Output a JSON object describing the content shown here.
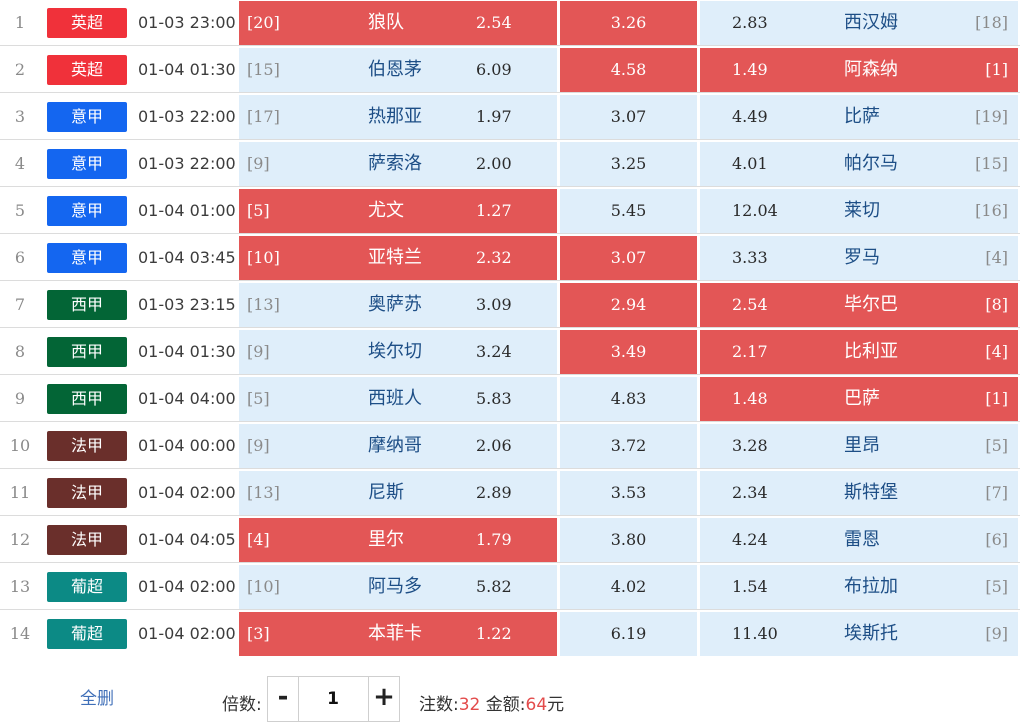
{
  "colors": {
    "league_epl": "#f0313a",
    "league_seriea": "#1466f0",
    "league_laliga": "#036536",
    "league_ligue1": "#6a2f2b",
    "league_primeira": "#0c8a85",
    "selected_cell": "#e35656",
    "unselected_cell": "#dfeefa"
  },
  "matches": [
    {
      "index": "1",
      "league": "英超",
      "league_color": "#f0313a",
      "time": "01-03 23:00",
      "home_rank": "[20]",
      "home_team": "狼队",
      "odds_home": "2.54",
      "odds_draw": "3.26",
      "odds_away": "2.83",
      "away_team": "西汉姆",
      "away_rank": "[18]",
      "sel_home": true,
      "sel_draw": true,
      "sel_away": false
    },
    {
      "index": "2",
      "league": "英超",
      "league_color": "#f0313a",
      "time": "01-04 01:30",
      "home_rank": "[15]",
      "home_team": "伯恩茅",
      "odds_home": "6.09",
      "odds_draw": "4.58",
      "odds_away": "1.49",
      "away_team": "阿森纳",
      "away_rank": "[1]",
      "sel_home": false,
      "sel_draw": true,
      "sel_away": true
    },
    {
      "index": "3",
      "league": "意甲",
      "league_color": "#1466f0",
      "time": "01-03 22:00",
      "home_rank": "[17]",
      "home_team": "热那亚",
      "odds_home": "1.97",
      "odds_draw": "3.07",
      "odds_away": "4.49",
      "away_team": "比萨",
      "away_rank": "[19]",
      "sel_home": false,
      "sel_draw": false,
      "sel_away": false
    },
    {
      "index": "4",
      "league": "意甲",
      "league_color": "#1466f0",
      "time": "01-03 22:00",
      "home_rank": "[9]",
      "home_team": "萨索洛",
      "odds_home": "2.00",
      "odds_draw": "3.25",
      "odds_away": "4.01",
      "away_team": "帕尔马",
      "away_rank": "[15]",
      "sel_home": false,
      "sel_draw": false,
      "sel_away": false
    },
    {
      "index": "5",
      "league": "意甲",
      "league_color": "#1466f0",
      "time": "01-04 01:00",
      "home_rank": "[5]",
      "home_team": "尤文",
      "odds_home": "1.27",
      "odds_draw": "5.45",
      "odds_away": "12.04",
      "away_team": "莱切",
      "away_rank": "[16]",
      "sel_home": true,
      "sel_draw": false,
      "sel_away": false
    },
    {
      "index": "6",
      "league": "意甲",
      "league_color": "#1466f0",
      "time": "01-04 03:45",
      "home_rank": "[10]",
      "home_team": "亚特兰",
      "odds_home": "2.32",
      "odds_draw": "3.07",
      "odds_away": "3.33",
      "away_team": "罗马",
      "away_rank": "[4]",
      "sel_home": true,
      "sel_draw": true,
      "sel_away": false
    },
    {
      "index": "7",
      "league": "西甲",
      "league_color": "#036536",
      "time": "01-03 23:15",
      "home_rank": "[13]",
      "home_team": "奥萨苏",
      "odds_home": "3.09",
      "odds_draw": "2.94",
      "odds_away": "2.54",
      "away_team": "毕尔巴",
      "away_rank": "[8]",
      "sel_home": false,
      "sel_draw": true,
      "sel_away": true
    },
    {
      "index": "8",
      "league": "西甲",
      "league_color": "#036536",
      "time": "01-04 01:30",
      "home_rank": "[9]",
      "home_team": "埃尔切",
      "odds_home": "3.24",
      "odds_draw": "3.49",
      "odds_away": "2.17",
      "away_team": "比利亚",
      "away_rank": "[4]",
      "sel_home": false,
      "sel_draw": true,
      "sel_away": true
    },
    {
      "index": "9",
      "league": "西甲",
      "league_color": "#036536",
      "time": "01-04 04:00",
      "home_rank": "[5]",
      "home_team": "西班人",
      "odds_home": "5.83",
      "odds_draw": "4.83",
      "odds_away": "1.48",
      "away_team": "巴萨",
      "away_rank": "[1]",
      "sel_home": false,
      "sel_draw": false,
      "sel_away": true
    },
    {
      "index": "10",
      "league": "法甲",
      "league_color": "#6a2f2b",
      "time": "01-04 00:00",
      "home_rank": "[9]",
      "home_team": "摩纳哥",
      "odds_home": "2.06",
      "odds_draw": "3.72",
      "odds_away": "3.28",
      "away_team": "里昂",
      "away_rank": "[5]",
      "sel_home": false,
      "sel_draw": false,
      "sel_away": false
    },
    {
      "index": "11",
      "league": "法甲",
      "league_color": "#6a2f2b",
      "time": "01-04 02:00",
      "home_rank": "[13]",
      "home_team": "尼斯",
      "odds_home": "2.89",
      "odds_draw": "3.53",
      "odds_away": "2.34",
      "away_team": "斯特堡",
      "away_rank": "[7]",
      "sel_home": false,
      "sel_draw": false,
      "sel_away": false
    },
    {
      "index": "12",
      "league": "法甲",
      "league_color": "#6a2f2b",
      "time": "01-04 04:05",
      "home_rank": "[4]",
      "home_team": "里尔",
      "odds_home": "1.79",
      "odds_draw": "3.80",
      "odds_away": "4.24",
      "away_team": "雷恩",
      "away_rank": "[6]",
      "sel_home": true,
      "sel_draw": false,
      "sel_away": false
    },
    {
      "index": "13",
      "league": "葡超",
      "league_color": "#0c8a85",
      "time": "01-04 02:00",
      "home_rank": "[10]",
      "home_team": "阿马多",
      "odds_home": "5.82",
      "odds_draw": "4.02",
      "odds_away": "1.54",
      "away_team": "布拉加",
      "away_rank": "[5]",
      "sel_home": false,
      "sel_draw": false,
      "sel_away": false
    },
    {
      "index": "14",
      "league": "葡超",
      "league_color": "#0c8a85",
      "time": "01-04 02:00",
      "home_rank": "[3]",
      "home_team": "本菲卡",
      "odds_home": "1.22",
      "odds_draw": "6.19",
      "odds_away": "11.40",
      "away_team": "埃斯托",
      "away_rank": "[9]",
      "sel_home": true,
      "sel_draw": false,
      "sel_away": false
    }
  ],
  "footer": {
    "clear_label": "全删",
    "multiplier_label": "倍数:",
    "minus_label": "-",
    "plus_label": "+",
    "multiplier_value": "1",
    "bets_label": "注数:",
    "bets_count": "32",
    "amount_label": "金额:",
    "amount_value": "64",
    "currency": "元"
  }
}
